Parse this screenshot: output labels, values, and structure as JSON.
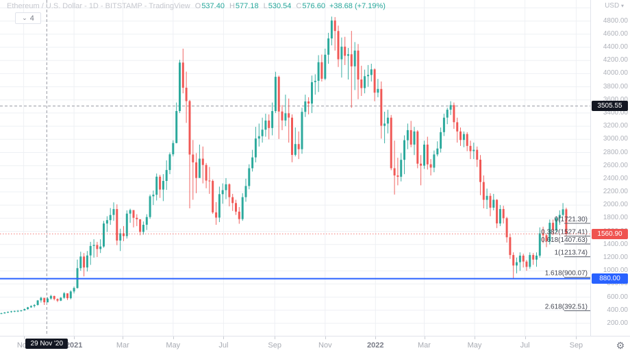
{
  "header": {
    "title": "Ethereum / U.S. Dollar - 1D - BITSTAMP - TradingView",
    "o_label": "O",
    "o": "537.40",
    "h_label": "H",
    "h": "577.18",
    "l_label": "L",
    "l": "530.54",
    "c_label": "C",
    "c": "576.60",
    "change": "+38.68 (+7.19%)"
  },
  "toolbar": {
    "collapse_count": "4",
    "chevron_icon": "⌄"
  },
  "icons": {
    "gear": "⚙",
    "chevron_down": "▾"
  },
  "colors": {
    "up": "#26a69a",
    "down": "#ef5350",
    "grid": "#eef0f4",
    "crosshair": "#9598a1",
    "alert_line": "#2962ff",
    "last_price_line": "#ef5350",
    "badge_black": "#131722",
    "badge_red": "#ef5350",
    "badge_blue": "#2962ff",
    "fib_line": "#5d606b",
    "fib_text": "#434651"
  },
  "price_axis": {
    "currency": "USD",
    "labels": [
      "4800.00",
      "4600.00",
      "4400.00",
      "4200.00",
      "4000.00",
      "3800.00",
      "3600.00",
      "3400.00",
      "3200.00",
      "3000.00",
      "2800.00",
      "2600.00",
      "2400.00",
      "2200.00",
      "2000.00",
      "1800.00",
      "1600.00",
      "1400.00",
      "1200.00",
      "1000.00",
      "800.00",
      "600.00",
      "400.00",
      "200.00"
    ],
    "badges": [
      {
        "text": "3505.55",
        "price": 3505.55,
        "type": "crosshair"
      },
      {
        "text": "1560.90",
        "price": 1560.9,
        "type": "last-price"
      },
      {
        "text": "880.00",
        "price": 880.0,
        "type": "alert-line"
      }
    ]
  },
  "time_axis": {
    "labels": [
      {
        "text": "Nov",
        "day": 27,
        "year": false
      },
      {
        "text": "2021",
        "day": 88,
        "year": true
      },
      {
        "text": "Mar",
        "day": 147,
        "year": false
      },
      {
        "text": "May",
        "day": 208,
        "year": false
      },
      {
        "text": "Jul",
        "day": 269,
        "year": false
      },
      {
        "text": "Sep",
        "day": 331,
        "year": false
      },
      {
        "text": "Nov",
        "day": 392,
        "year": false
      },
      {
        "text": "2022",
        "day": 453,
        "year": true
      },
      {
        "text": "Mar",
        "day": 512,
        "year": false
      },
      {
        "text": "May",
        "day": 573,
        "year": false
      },
      {
        "text": "Jul",
        "day": 634,
        "year": false
      },
      {
        "text": "Sep",
        "day": 696,
        "year": false
      }
    ],
    "badge": {
      "text": "29 Nov '20",
      "day": 55
    }
  },
  "chart_data": {
    "type": "candlestick",
    "symbol": "Ethereum / U.S. Dollar",
    "interval": "1D",
    "exchange": "BITSTAMP",
    "selected_bar": {
      "date": "29 Nov '20",
      "open": 537.4,
      "high": 577.18,
      "low": 530.54,
      "close": 576.6,
      "change": "+38.68 (+7.19%)"
    },
    "ylim": [
      0,
      5000
    ],
    "y_gridline_step": 200,
    "bar_interval_days": 4,
    "first_bar_open": 345,
    "crosshair": {
      "price": 3505.55,
      "date": "29 Nov '20",
      "day": 55
    },
    "price_lines": [
      {
        "label": "880.00",
        "price": 880.0,
        "style": "solid",
        "role": "alert-line"
      },
      {
        "label": "1560.90",
        "price": 1560.9,
        "style": "dotted",
        "role": "last-price"
      }
    ],
    "fib_retracement": {
      "levels": [
        {
          "label": "0(1721.30)",
          "price": 1721.3
        },
        {
          "label": "0.382(1527.41)",
          "price": 1527.41
        },
        {
          "label": "0.618(1407.63)",
          "price": 1407.63
        },
        {
          "label": "1(1213.74)",
          "price": 1213.74
        },
        {
          "label": "1.618(900.07)",
          "price": 900.07
        },
        {
          "label": "2.618(392.51)",
          "price": 392.51
        }
      ]
    },
    "bars": [
      [
        362,
        340,
        353
      ],
      [
        372,
        348,
        365
      ],
      [
        381,
        356,
        375
      ],
      [
        390,
        362,
        383
      ],
      [
        394,
        370,
        388
      ],
      [
        402,
        371,
        390
      ],
      [
        404,
        379,
        397
      ],
      [
        425,
        393,
        417
      ],
      [
        450,
        408,
        444
      ],
      [
        475,
        437,
        463
      ],
      [
        492,
        441,
        480
      ],
      [
        555,
        470,
        549
      ],
      [
        605,
        516,
        588
      ],
      [
        585,
        480,
        520
      ],
      [
        598,
        531,
        577
      ],
      [
        635,
        560,
        616
      ],
      [
        622,
        550,
        570
      ],
      [
        580,
        524,
        545
      ],
      [
        600,
        538,
        589
      ],
      [
        676,
        575,
        658
      ],
      [
        648,
        555,
        583
      ],
      [
        703,
        565,
        685
      ],
      [
        760,
        655,
        738
      ],
      [
        1170,
        730,
        1040
      ],
      [
        1290,
        1000,
        1217
      ],
      [
        1270,
        915,
        1050
      ],
      [
        1300,
        990,
        1233
      ],
      [
        1440,
        1090,
        1377
      ],
      [
        1480,
        1200,
        1392
      ],
      [
        1440,
        1210,
        1330
      ],
      [
        1480,
        1270,
        1369
      ],
      [
        1760,
        1350,
        1719
      ],
      [
        1830,
        1590,
        1771
      ],
      [
        1955,
        1700,
        1849
      ],
      [
        2042,
        1760,
        1938
      ],
      [
        2010,
        1390,
        1459
      ],
      [
        1640,
        1300,
        1570
      ],
      [
        1680,
        1450,
        1528
      ],
      [
        1920,
        1490,
        1870
      ],
      [
        1945,
        1730,
        1924
      ],
      [
        1890,
        1660,
        1806
      ],
      [
        1860,
        1680,
        1784
      ],
      [
        1700,
        1540,
        1592
      ],
      [
        1750,
        1550,
        1700
      ],
      [
        1860,
        1620,
        1817
      ],
      [
        2160,
        1790,
        2133
      ],
      [
        2220,
        2000,
        2157
      ],
      [
        2480,
        2070,
        2432
      ],
      [
        2460,
        2110,
        2236
      ],
      [
        2470,
        2060,
        2367
      ],
      [
        2680,
        2230,
        2533
      ],
      [
        2800,
        2470,
        2772
      ],
      [
        2985,
        2740,
        2944
      ],
      [
        3560,
        2940,
        3431
      ],
      [
        4210,
        3400,
        4168
      ],
      [
        4380,
        3700,
        3785
      ],
      [
        4030,
        3250,
        3582
      ],
      [
        3600,
        1950,
        2769
      ],
      [
        2990,
        2080,
        2650
      ],
      [
        2790,
        2180,
        2412
      ],
      [
        2920,
        2550,
        2706
      ],
      [
        2890,
        2330,
        2610
      ],
      [
        2640,
        2255,
        2372
      ],
      [
        2580,
        2170,
        2367
      ],
      [
        2390,
        1865,
        1888
      ],
      [
        2045,
        1700,
        1809
      ],
      [
        2280,
        1740,
        2166
      ],
      [
        2330,
        2020,
        2226
      ],
      [
        2410,
        2090,
        2316
      ],
      [
        2330,
        1980,
        2120
      ],
      [
        2170,
        1910,
        2030
      ],
      [
        2080,
        1850,
        1900
      ],
      [
        1970,
        1715,
        1786
      ],
      [
        2180,
        1760,
        2120
      ],
      [
        2400,
        2050,
        2290
      ],
      [
        2620,
        2240,
        2560
      ],
      [
        2840,
        2510,
        2725
      ],
      [
        3190,
        2650,
        3012
      ],
      [
        3240,
        2890,
        3048
      ],
      [
        3330,
        2950,
        3147
      ],
      [
        3390,
        3040,
        3286
      ],
      [
        3380,
        3000,
        3172
      ],
      [
        3560,
        3060,
        3430
      ],
      [
        4028,
        3400,
        3951
      ],
      [
        3970,
        3005,
        3423
      ],
      [
        3520,
        3140,
        3287
      ],
      [
        3680,
        3200,
        3396
      ],
      [
        3620,
        2950,
        3330
      ],
      [
        3380,
        2651,
        2764
      ],
      [
        3180,
        2740,
        2928
      ],
      [
        3120,
        2700,
        2850
      ],
      [
        3480,
        2780,
        3418
      ],
      [
        3680,
        3340,
        3577
      ],
      [
        3640,
        3380,
        3545
      ],
      [
        3970,
        3400,
        3870
      ],
      [
        3990,
        3680,
        3890
      ],
      [
        4280,
        3720,
        4173
      ],
      [
        4290,
        3880,
        3922
      ],
      [
        4380,
        3900,
        4288
      ],
      [
        4620,
        4150,
        4535
      ],
      [
        4868,
        4430,
        4808
      ],
      [
        4860,
        4350,
        4648
      ],
      [
        4730,
        4100,
        4218
      ],
      [
        4550,
        3940,
        4410
      ],
      [
        4560,
        4130,
        4271
      ],
      [
        4390,
        3910,
        4294
      ],
      [
        4650,
        3480,
        4110
      ],
      [
        4480,
        3750,
        4350
      ],
      [
        4450,
        3610,
        3910
      ],
      [
        4120,
        3660,
        3780
      ],
      [
        4060,
        3700,
        3960
      ],
      [
        4130,
        3800,
        3980
      ],
      [
        4150,
        3880,
        4065
      ],
      [
        4080,
        3580,
        3710
      ],
      [
        3920,
        3640,
        3766
      ],
      [
        3880,
        3010,
        3206
      ],
      [
        3420,
        2940,
        3240
      ],
      [
        3450,
        3090,
        3330
      ],
      [
        3370,
        2530,
        2560
      ],
      [
        2980,
        2160,
        2450
      ],
      [
        2720,
        2300,
        2430
      ],
      [
        2790,
        2360,
        2688
      ],
      [
        3060,
        2470,
        2986
      ],
      [
        3240,
        2850,
        3140
      ],
      [
        3280,
        2880,
        2920
      ],
      [
        3190,
        2760,
        3120
      ],
      [
        3140,
        2560,
        2630
      ],
      [
        2760,
        2300,
        2600
      ],
      [
        2980,
        2550,
        2920
      ],
      [
        3040,
        2540,
        2620
      ],
      [
        2700,
        2450,
        2570
      ],
      [
        2830,
        2500,
        2770
      ],
      [
        2970,
        2740,
        2860
      ],
      [
        3180,
        2800,
        3110
      ],
      [
        3390,
        3050,
        3330
      ],
      [
        3480,
        3230,
        3450
      ],
      [
        3580,
        3370,
        3520
      ],
      [
        3560,
        3160,
        3260
      ],
      [
        3330,
        2950,
        3120
      ],
      [
        3180,
        2900,
        2990
      ],
      [
        3120,
        2880,
        3080
      ],
      [
        3110,
        2820,
        2900
      ],
      [
        2980,
        2700,
        2820
      ],
      [
        2950,
        2700,
        2840
      ],
      [
        2890,
        2580,
        2690
      ],
      [
        2760,
        2150,
        2350
      ],
      [
        2450,
        1950,
        2080
      ],
      [
        2250,
        1940,
        2140
      ],
      [
        2180,
        1830,
        1960
      ],
      [
        2170,
        1920,
        2080
      ],
      [
        2090,
        1650,
        1720
      ],
      [
        2000,
        1680,
        1940
      ],
      [
        1990,
        1720,
        1800
      ],
      [
        1820,
        1430,
        1510
      ],
      [
        1560,
        1180,
        1240
      ],
      [
        1280,
        880,
        1080
      ],
      [
        1200,
        960,
        1130
      ],
      [
        1280,
        1000,
        1230
      ],
      [
        1260,
        1050,
        1140
      ],
      [
        1165,
        1000,
        1060
      ],
      [
        1280,
        1030,
        1240
      ],
      [
        1270,
        1090,
        1170
      ],
      [
        1280,
        1060,
        1230
      ],
      [
        1660,
        1200,
        1570
      ],
      [
        1670,
        1420,
        1540
      ],
      [
        1560,
        1360,
        1450
      ],
      [
        1780,
        1400,
        1730
      ],
      [
        1780,
        1540,
        1620
      ],
      [
        1830,
        1590,
        1800
      ],
      [
        1920,
        1700,
        1850
      ],
      [
        2030,
        1830,
        1935
      ],
      [
        1960,
        1531,
        1561
      ]
    ]
  }
}
